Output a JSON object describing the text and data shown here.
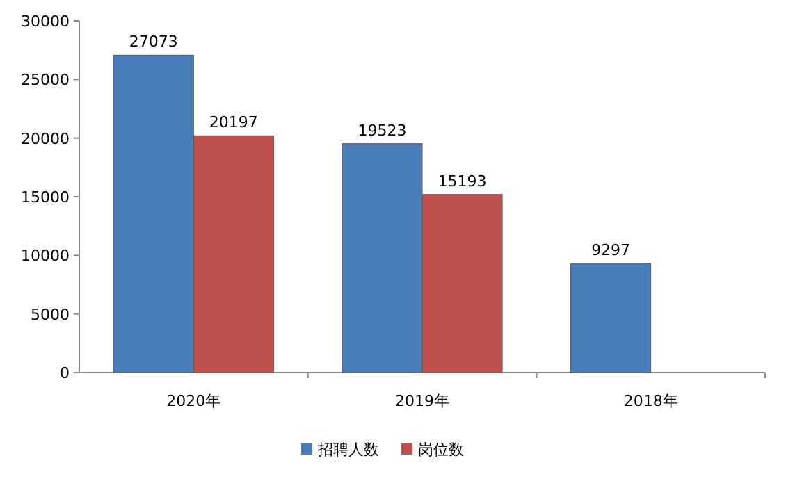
{
  "chart_data": {
    "type": "bar",
    "categories": [
      "2020年",
      "2019年",
      "2018年"
    ],
    "series": [
      {
        "name": "招聘人数",
        "color": "#4a7ebb",
        "values": [
          27073,
          19523,
          9297
        ]
      },
      {
        "name": "岗位数",
        "color": "#c0504d",
        "values": [
          20197,
          15193,
          null
        ]
      }
    ],
    "ylim": [
      0,
      30000
    ],
    "yticks": [
      0,
      5000,
      10000,
      15000,
      20000,
      25000,
      30000
    ],
    "data_labels": true,
    "legend": "bottom"
  }
}
